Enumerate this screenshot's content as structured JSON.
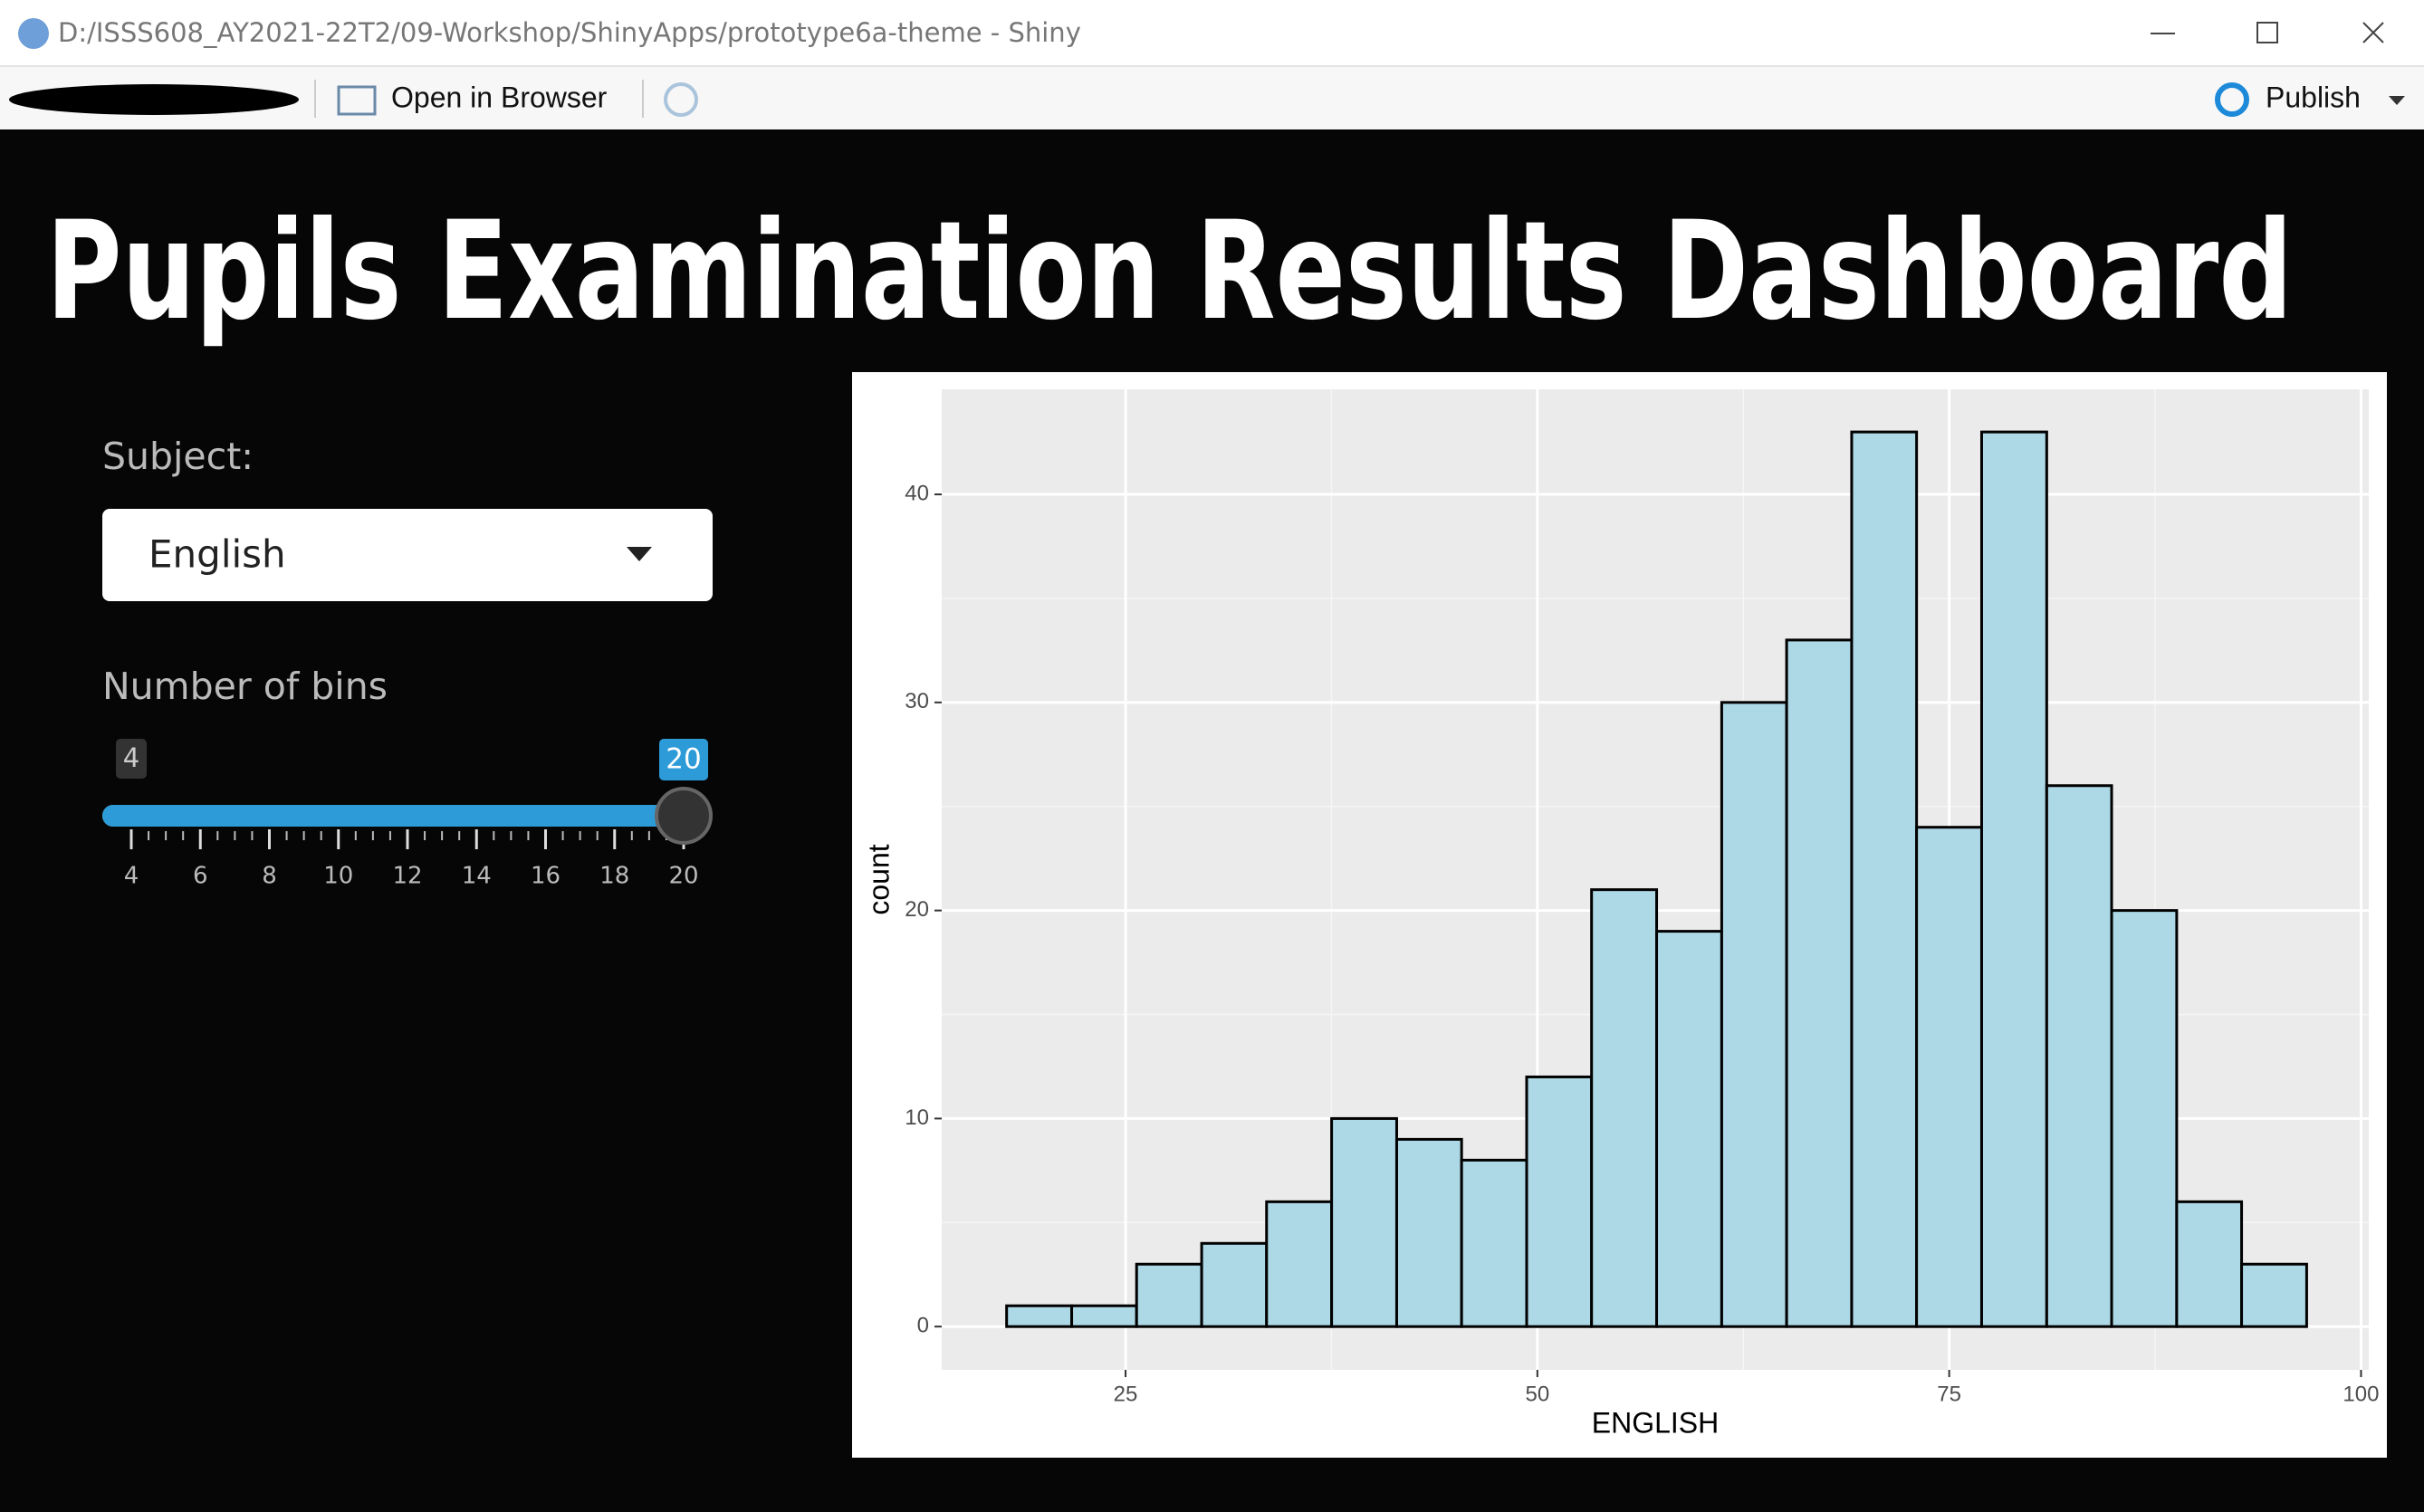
{
  "window": {
    "title": "D:/ISSS608_AY2021-22T2/09-Workshop/ShinyApps/prototype6a-theme - Shiny"
  },
  "toolbar": {
    "open_in_browser": "Open in Browser",
    "publish": "Publish"
  },
  "header": {
    "title": "Pupils Examination Results Dashboard"
  },
  "sidebar": {
    "subject_label": "Subject:",
    "subject_value": "English",
    "bins_label": "Number of bins",
    "slider": {
      "min": 4,
      "max": 20,
      "value": 20,
      "ticks": [
        4,
        6,
        8,
        10,
        12,
        14,
        16,
        18,
        20
      ]
    }
  },
  "chart_data": {
    "type": "histogram",
    "x_label": "ENGLISH",
    "y_label": "count",
    "bins": [
      17.78,
      21.73,
      25.67,
      29.62,
      33.56,
      37.51,
      41.46,
      45.4,
      49.35,
      53.29,
      57.24,
      61.19,
      65.13,
      69.08,
      73.02,
      76.97,
      80.92,
      84.86,
      88.81,
      92.75,
      96.7
    ],
    "values": [
      1,
      1,
      3,
      4,
      6,
      10,
      9,
      8,
      12,
      21,
      19,
      30,
      33,
      43,
      24,
      43,
      26,
      20,
      6,
      3
    ],
    "color": "#add8e6",
    "edgecolor": "#000000",
    "xlim": [
      13.84,
      100.47
    ],
    "ylim": [
      -2.08,
      45.05
    ],
    "xticks": [
      25,
      50,
      75,
      100
    ],
    "yticks": [
      0,
      10,
      20,
      30,
      40
    ],
    "grid": true
  }
}
